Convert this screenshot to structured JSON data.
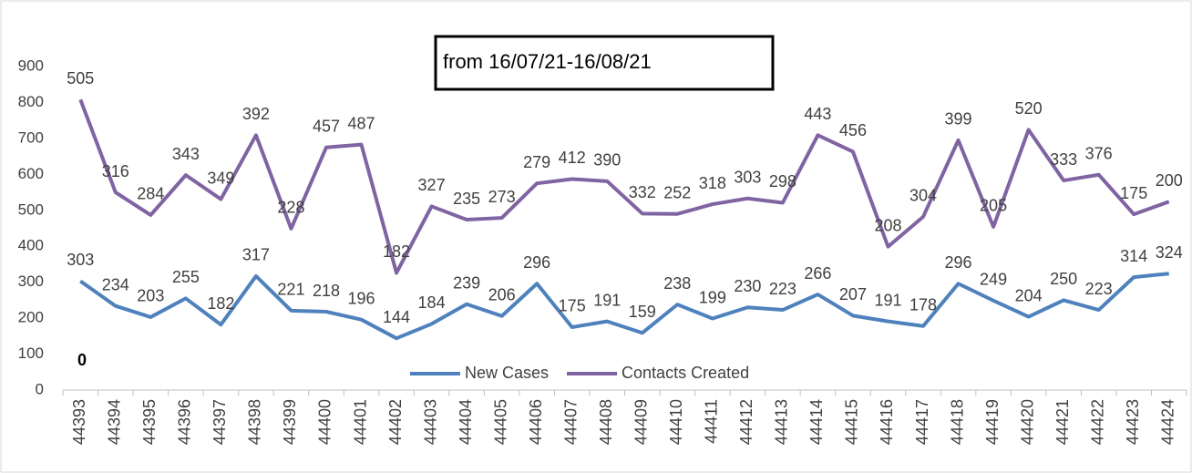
{
  "chart_data": {
    "type": "line",
    "title": "from 16/07/21-16/08/21",
    "stacked": true,
    "annotation": "0",
    "categories": [
      "44393",
      "44394",
      "44395",
      "44396",
      "44397",
      "44398",
      "44399",
      "44400",
      "44401",
      "44402",
      "44403",
      "44404",
      "44405",
      "44406",
      "44407",
      "44408",
      "44409",
      "44410",
      "44411",
      "44412",
      "44413",
      "44414",
      "44415",
      "44416",
      "44417",
      "44418",
      "44419",
      "44420",
      "44421",
      "44422",
      "44423",
      "44424"
    ],
    "series": [
      {
        "name": "New Cases",
        "color": "#4f81bd",
        "values": [
          303,
          234,
          203,
          255,
          182,
          317,
          221,
          218,
          196,
          144,
          184,
          239,
          206,
          296,
          175,
          191,
          159,
          238,
          199,
          230,
          223,
          266,
          207,
          191,
          178,
          296,
          249,
          204,
          250,
          223,
          314,
          324
        ]
      },
      {
        "name": "Contacts Created",
        "color": "#8064a2",
        "values": [
          505,
          316,
          284,
          343,
          349,
          392,
          228,
          457,
          487,
          182,
          327,
          235,
          273,
          279,
          412,
          390,
          332,
          252,
          318,
          303,
          298,
          443,
          456,
          208,
          304,
          399,
          205,
          520,
          333,
          376,
          175,
          200
        ]
      }
    ],
    "ylim": [
      0,
      900
    ],
    "yticks": [
      0,
      100,
      200,
      300,
      400,
      500,
      600,
      700,
      800,
      900
    ],
    "grid": false,
    "legend": "bottom"
  }
}
